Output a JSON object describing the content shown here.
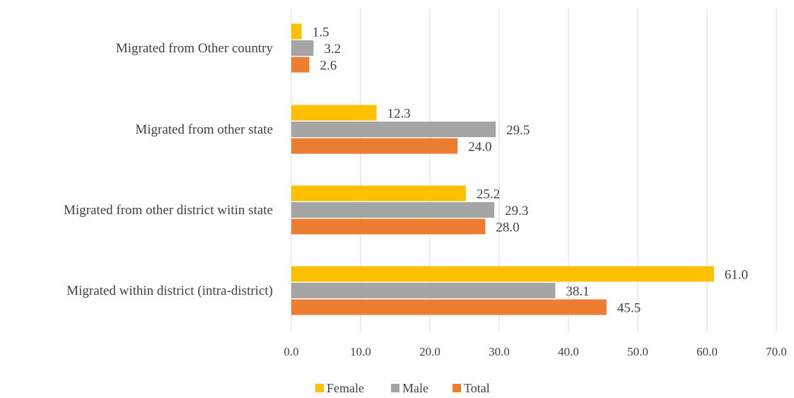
{
  "chart_data": {
    "type": "bar",
    "orientation": "horizontal",
    "categories": [
      "Migrated from Other country",
      "Migrated from other state",
      "Migrated from other district witin state",
      "Migrated within district (intra-district)"
    ],
    "series": [
      {
        "name": "Female",
        "color": "#FFC000",
        "values": [
          1.5,
          12.3,
          25.2,
          61.0
        ]
      },
      {
        "name": "Male",
        "color": "#A5A5A5",
        "values": [
          3.2,
          29.5,
          29.3,
          38.1
        ]
      },
      {
        "name": "Total",
        "color": "#ED7D31",
        "values": [
          2.6,
          24.0,
          28.0,
          45.5
        ]
      }
    ],
    "xlim": [
      0,
      70
    ],
    "xticks": [
      "0.0",
      "10.0",
      "20.0",
      "30.0",
      "40.0",
      "50.0",
      "60.0",
      "70.0"
    ],
    "value_labels": [
      [
        "1.5",
        "12.3",
        "25.2",
        "61.0"
      ],
      [
        "3.2",
        "29.5",
        "29.3",
        "38.1"
      ],
      [
        "2.6",
        "24.0",
        "28.0",
        "45.5"
      ]
    ],
    "grid": "vertical",
    "legend_position": "bottom",
    "title": "",
    "xlabel": "",
    "ylabel": ""
  }
}
